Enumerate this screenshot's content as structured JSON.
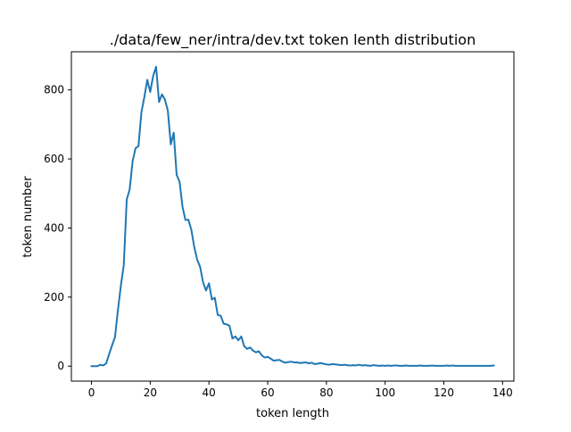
{
  "chart_data": {
    "type": "line",
    "title": "./data/few_ner/intra/dev.txt token lenth distribution",
    "xlabel": "token length",
    "ylabel": "token number",
    "xlim": [
      -6.85,
      143.85
    ],
    "ylim": [
      -43.35,
      910.35
    ],
    "xticks": [
      0,
      20,
      40,
      60,
      80,
      100,
      120,
      140
    ],
    "yticks": [
      0,
      200,
      400,
      600,
      800
    ],
    "grid": false,
    "legend": "none",
    "line_color": "#1f77b4",
    "series": [
      {
        "x": [
          0,
          1,
          2,
          3,
          4,
          5,
          6,
          7,
          8,
          9,
          10,
          11,
          12,
          13,
          14,
          15,
          16,
          17,
          18,
          19,
          20,
          21,
          22,
          23,
          24,
          25,
          26,
          27,
          28,
          29,
          30,
          31,
          32,
          33,
          34,
          35,
          36,
          37,
          38,
          39,
          40,
          41,
          42,
          43,
          44,
          45,
          46,
          47,
          48,
          49,
          50,
          51,
          52,
          53,
          54,
          55,
          56,
          57,
          58,
          59,
          60,
          61,
          62,
          63,
          64,
          65,
          66,
          67,
          68,
          69,
          70,
          71,
          72,
          73,
          74,
          75,
          76,
          77,
          78,
          79,
          80,
          81,
          82,
          83,
          84,
          85,
          86,
          87,
          88,
          89,
          90,
          91,
          92,
          93,
          94,
          95,
          96,
          97,
          98,
          99,
          100,
          101,
          102,
          103,
          104,
          105,
          106,
          107,
          108,
          109,
          110,
          111,
          112,
          113,
          114,
          115,
          116,
          117,
          118,
          119,
          120,
          121,
          122,
          123,
          124,
          125,
          126,
          127,
          128,
          129,
          130,
          131,
          132,
          133,
          134,
          135,
          136,
          137
        ],
        "y": [
          0,
          0,
          0,
          4,
          2,
          8,
          35,
          60,
          84,
          162,
          233,
          293,
          482,
          512,
          593,
          631,
          637,
          735,
          779,
          829,
          794,
          840,
          867,
          765,
          787,
          772,
          740,
          642,
          676,
          554,
          534,
          461,
          423,
          424,
          395,
          345,
          308,
          287,
          243,
          219,
          240,
          193,
          198,
          148,
          146,
          123,
          121,
          117,
          80,
          86,
          75,
          86,
          58,
          50,
          54,
          45,
          40,
          43,
          31,
          25,
          27,
          22,
          16,
          17,
          18,
          13,
          10,
          12,
          13,
          11,
          11,
          9,
          10,
          11,
          8,
          10,
          6,
          7,
          9,
          7,
          5,
          4,
          6,
          5,
          4,
          3,
          4,
          3,
          2,
          3,
          2,
          4,
          2,
          3,
          2,
          1,
          3,
          2,
          1,
          2,
          1,
          2,
          1,
          2,
          2,
          1,
          1,
          2,
          1,
          1,
          1,
          1,
          2,
          1,
          1,
          1,
          2,
          1,
          1,
          1,
          1,
          2,
          1,
          2,
          1,
          1,
          1,
          1,
          1,
          1,
          1,
          1,
          1,
          1,
          1,
          1,
          1,
          2
        ]
      }
    ]
  }
}
